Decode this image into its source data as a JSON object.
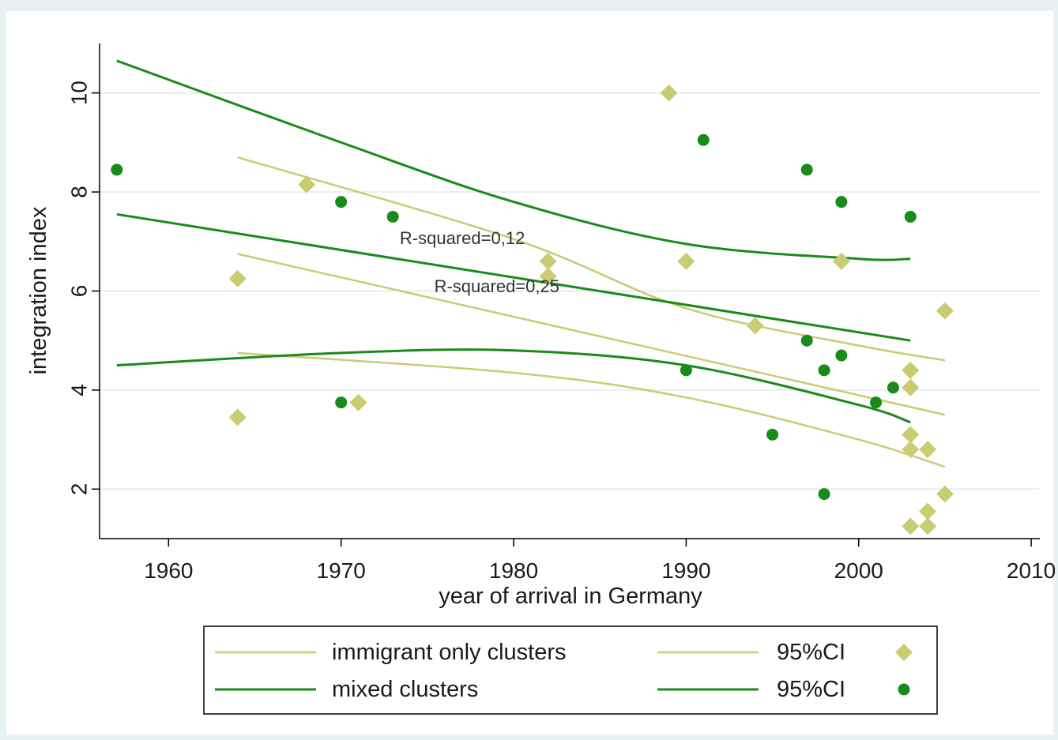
{
  "chart_data": {
    "type": "scatter",
    "xlabel": "year of arrival in Germany",
    "ylabel": "integration index",
    "xlim": [
      1956,
      2010.5
    ],
    "ylim": [
      1,
      11
    ],
    "xticks": [
      1960,
      1970,
      1980,
      1990,
      2000,
      2010
    ],
    "yticks": [
      2,
      4,
      6,
      8,
      10
    ],
    "grid": "horizontal",
    "legend_position": "bottom",
    "colors": {
      "immigrant": "#c9cc72",
      "mixed": "#1a8a1a",
      "background": "#eaf1f5",
      "plot": "#ffffff"
    },
    "annotations": [
      {
        "text": "R-squared=0,12",
        "x": 1973.4,
        "y": 6.95
      },
      {
        "text": "R-squared=0,25",
        "x": 1975.4,
        "y": 5.98
      }
    ],
    "legend": [
      {
        "label": "immigrant only clusters",
        "kind": "line",
        "series": "immigrant"
      },
      {
        "label": "95%CI",
        "kind": "line-diamond",
        "series": "immigrant"
      },
      {
        "label": "mixed clusters",
        "kind": "line",
        "series": "mixed"
      },
      {
        "label": "95%CI",
        "kind": "line-circle",
        "series": "mixed"
      }
    ],
    "series": [
      {
        "key": "immigrant",
        "kind": "fit",
        "marker": "diamond",
        "points": [
          [
            1964,
            6.25
          ],
          [
            1964,
            3.45
          ],
          [
            1968,
            8.15
          ],
          [
            1971,
            3.75
          ],
          [
            1982,
            6.6
          ],
          [
            1982,
            6.3
          ],
          [
            1989,
            10.0
          ],
          [
            1990,
            6.6
          ],
          [
            1994,
            5.3
          ],
          [
            1999,
            6.6
          ],
          [
            2003,
            4.4
          ],
          [
            2003,
            4.05
          ],
          [
            2003,
            3.1
          ],
          [
            2003,
            2.8
          ],
          [
            2003,
            1.25
          ],
          [
            2004,
            2.8
          ],
          [
            2004,
            1.55
          ],
          [
            2004,
            1.25
          ],
          [
            2005,
            5.6
          ],
          [
            2005,
            1.9
          ]
        ],
        "fit": [
          [
            1964,
            6.75
          ],
          [
            2005,
            3.5
          ]
        ],
        "ci_upper": [
          [
            1964,
            8.7
          ],
          [
            1980,
            7.05
          ],
          [
            1990,
            5.65
          ],
          [
            2000,
            4.9
          ],
          [
            2005,
            4.6
          ]
        ],
        "ci_lower": [
          [
            1964,
            4.75
          ],
          [
            1980,
            4.35
          ],
          [
            1990,
            3.85
          ],
          [
            2000,
            3.0
          ],
          [
            2005,
            2.45
          ]
        ]
      },
      {
        "key": "mixed",
        "kind": "fit",
        "marker": "circle",
        "points": [
          [
            1957,
            8.45
          ],
          [
            1970,
            7.8
          ],
          [
            1970,
            3.75
          ],
          [
            1973,
            7.5
          ],
          [
            1990,
            4.4
          ],
          [
            1991,
            9.05
          ],
          [
            1995,
            3.1
          ],
          [
            1997,
            8.45
          ],
          [
            1997,
            5.0
          ],
          [
            1998,
            4.4
          ],
          [
            1998,
            1.9
          ],
          [
            1999,
            7.8
          ],
          [
            1999,
            4.7
          ],
          [
            2001,
            3.75
          ],
          [
            2002,
            4.05
          ],
          [
            2003,
            7.5
          ]
        ],
        "fit": [
          [
            1957,
            7.55
          ],
          [
            2003,
            5.0
          ]
        ],
        "ci_upper": [
          [
            1957,
            10.65
          ],
          [
            1970,
            9.0
          ],
          [
            1980,
            7.8
          ],
          [
            1990,
            6.95
          ],
          [
            2000,
            6.65
          ],
          [
            2003,
            6.65
          ]
        ],
        "ci_lower": [
          [
            1957,
            4.5
          ],
          [
            1970,
            4.75
          ],
          [
            1980,
            4.8
          ],
          [
            1990,
            4.5
          ],
          [
            2000,
            3.7
          ],
          [
            2003,
            3.35
          ]
        ]
      }
    ]
  }
}
